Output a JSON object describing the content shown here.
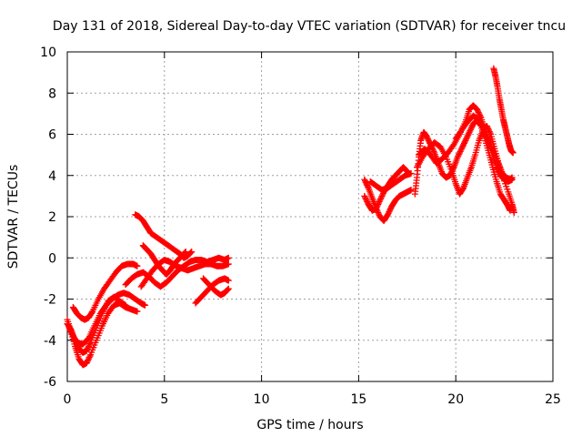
{
  "chart_data": {
    "type": "scatter",
    "title": "Day 131 of 2018, Sidereal Day-to-day VTEC variation (SDTVAR) for receiver tncu",
    "xlabel": "GPS time / hours",
    "ylabel": "SDTVAR / TECUs",
    "xlim": [
      0,
      25
    ],
    "ylim": [
      -6,
      10
    ],
    "xticks": [
      0,
      5,
      10,
      15,
      20,
      25
    ],
    "yticks": [
      -6,
      -4,
      -2,
      0,
      2,
      4,
      6,
      8,
      10
    ],
    "xtick_labels": [
      "0",
      "5",
      "10",
      "15",
      "20",
      "25"
    ],
    "ytick_labels": [
      "-6",
      "-4",
      "-2",
      "0",
      "2",
      "4",
      "6",
      "8",
      "10"
    ],
    "grid": true,
    "marker": "+",
    "color": "#ff0000",
    "series": [
      {
        "name": "track-1",
        "points": [
          [
            0.0,
            -3.0
          ],
          [
            0.2,
            -3.6
          ],
          [
            0.4,
            -4.3
          ],
          [
            0.6,
            -4.9
          ],
          [
            0.8,
            -5.2
          ],
          [
            1.0,
            -5.1
          ],
          [
            1.2,
            -4.7
          ],
          [
            1.5,
            -4.0
          ],
          [
            1.8,
            -3.3
          ],
          [
            2.1,
            -2.7
          ],
          [
            2.4,
            -2.3
          ],
          [
            2.7,
            -2.2
          ],
          [
            3.0,
            -2.4
          ],
          [
            3.3,
            -2.5
          ],
          [
            3.6,
            -2.6
          ]
        ]
      },
      {
        "name": "track-2",
        "points": [
          [
            0.0,
            -3.2
          ],
          [
            0.2,
            -3.5
          ],
          [
            0.4,
            -4.0
          ],
          [
            0.6,
            -4.4
          ],
          [
            0.8,
            -4.6
          ],
          [
            1.0,
            -4.5
          ],
          [
            1.2,
            -4.1
          ],
          [
            1.5,
            -3.4
          ],
          [
            1.8,
            -2.7
          ],
          [
            2.1,
            -2.1
          ],
          [
            2.4,
            -1.9
          ],
          [
            2.7,
            -2.1
          ],
          [
            3.0,
            -2.3
          ]
        ]
      },
      {
        "name": "track-3",
        "points": [
          [
            0.3,
            -2.4
          ],
          [
            0.5,
            -2.7
          ],
          [
            0.7,
            -2.9
          ],
          [
            0.9,
            -3.0
          ],
          [
            1.1,
            -2.9
          ],
          [
            1.3,
            -2.6
          ],
          [
            1.6,
            -2.0
          ],
          [
            1.9,
            -1.5
          ],
          [
            2.2,
            -1.1
          ],
          [
            2.5,
            -0.7
          ],
          [
            2.8,
            -0.4
          ],
          [
            3.1,
            -0.3
          ],
          [
            3.4,
            -0.3
          ],
          [
            3.6,
            -0.4
          ]
        ]
      },
      {
        "name": "track-4",
        "points": [
          [
            0.1,
            -3.4
          ],
          [
            0.3,
            -3.8
          ],
          [
            0.5,
            -4.1
          ],
          [
            0.8,
            -4.2
          ],
          [
            1.1,
            -3.9
          ],
          [
            1.4,
            -3.3
          ],
          [
            1.7,
            -2.7
          ],
          [
            2.0,
            -2.3
          ],
          [
            2.3,
            -2.0
          ],
          [
            2.6,
            -1.8
          ],
          [
            2.9,
            -1.7
          ],
          [
            3.2,
            -1.8
          ],
          [
            3.5,
            -2.0
          ],
          [
            3.8,
            -2.2
          ],
          [
            4.0,
            -2.3
          ]
        ]
      },
      {
        "name": "track-5",
        "points": [
          [
            3.5,
            2.1
          ],
          [
            3.7,
            2.0
          ],
          [
            3.9,
            1.8
          ],
          [
            4.1,
            1.5
          ],
          [
            4.3,
            1.2
          ],
          [
            4.6,
            1.0
          ],
          [
            4.9,
            0.8
          ],
          [
            5.2,
            0.6
          ],
          [
            5.5,
            0.4
          ],
          [
            5.8,
            0.2
          ],
          [
            6.0,
            0.0
          ],
          [
            6.2,
            0.1
          ],
          [
            6.4,
            0.3
          ]
        ]
      },
      {
        "name": "track-6",
        "points": [
          [
            3.8,
            -1.4
          ],
          [
            4.1,
            -1.0
          ],
          [
            4.4,
            -0.6
          ],
          [
            4.7,
            -0.3
          ],
          [
            5.0,
            -0.1
          ],
          [
            5.3,
            -0.2
          ],
          [
            5.6,
            -0.4
          ],
          [
            5.9,
            -0.5
          ],
          [
            6.2,
            -0.6
          ],
          [
            6.5,
            -0.5
          ],
          [
            6.8,
            -0.4
          ],
          [
            7.1,
            -0.3
          ],
          [
            7.4,
            -0.3
          ],
          [
            7.7,
            -0.4
          ],
          [
            8.0,
            -0.4
          ],
          [
            8.3,
            -0.3
          ]
        ]
      },
      {
        "name": "track-7",
        "points": [
          [
            3.9,
            0.6
          ],
          [
            4.1,
            0.4
          ],
          [
            4.3,
            0.2
          ],
          [
            4.5,
            -0.1
          ],
          [
            4.7,
            -0.4
          ],
          [
            4.9,
            -0.6
          ],
          [
            5.1,
            -0.8
          ],
          [
            5.3,
            -0.6
          ],
          [
            5.5,
            -0.3
          ],
          [
            5.7,
            -0.1
          ],
          [
            5.9,
            0.1
          ],
          [
            6.1,
            0.3
          ]
        ]
      },
      {
        "name": "track-8",
        "points": [
          [
            3.0,
            -1.3
          ],
          [
            3.3,
            -1.0
          ],
          [
            3.6,
            -0.8
          ],
          [
            3.9,
            -0.7
          ],
          [
            4.2,
            -0.9
          ],
          [
            4.5,
            -1.2
          ],
          [
            4.8,
            -1.4
          ],
          [
            5.1,
            -1.2
          ],
          [
            5.4,
            -0.9
          ],
          [
            5.7,
            -0.6
          ],
          [
            6.0,
            -0.4
          ],
          [
            6.3,
            -0.2
          ],
          [
            6.6,
            -0.1
          ],
          [
            6.9,
            -0.1
          ],
          [
            7.2,
            -0.2
          ],
          [
            7.5,
            -0.1
          ],
          [
            7.8,
            0.0
          ],
          [
            8.1,
            -0.1
          ],
          [
            8.3,
            0.0
          ]
        ]
      },
      {
        "name": "track-9",
        "points": [
          [
            6.6,
            -2.2
          ],
          [
            6.9,
            -1.9
          ],
          [
            7.2,
            -1.6
          ],
          [
            7.5,
            -1.3
          ],
          [
            7.8,
            -1.1
          ],
          [
            8.1,
            -1.0
          ],
          [
            8.3,
            -1.1
          ]
        ]
      },
      {
        "name": "track-10",
        "points": [
          [
            7.0,
            -1.0
          ],
          [
            7.3,
            -1.3
          ],
          [
            7.6,
            -1.6
          ],
          [
            7.9,
            -1.8
          ],
          [
            8.1,
            -1.7
          ],
          [
            8.3,
            -1.5
          ]
        ]
      },
      {
        "name": "track-11",
        "points": [
          [
            15.3,
            3.8
          ],
          [
            15.5,
            3.4
          ],
          [
            15.7,
            2.9
          ],
          [
            15.9,
            2.4
          ],
          [
            16.1,
            2.0
          ],
          [
            16.3,
            1.8
          ],
          [
            16.5,
            2.1
          ],
          [
            16.7,
            2.5
          ],
          [
            16.9,
            2.8
          ],
          [
            17.1,
            3.0
          ],
          [
            17.3,
            3.1
          ],
          [
            17.5,
            3.2
          ],
          [
            17.7,
            3.3
          ]
        ]
      },
      {
        "name": "track-12",
        "points": [
          [
            15.3,
            3.0
          ],
          [
            15.5,
            2.6
          ],
          [
            15.7,
            2.3
          ],
          [
            15.9,
            2.4
          ],
          [
            16.1,
            2.8
          ],
          [
            16.3,
            3.2
          ],
          [
            16.5,
            3.5
          ],
          [
            16.7,
            3.8
          ],
          [
            16.9,
            4.0
          ],
          [
            17.1,
            4.2
          ],
          [
            17.3,
            4.4
          ],
          [
            17.5,
            4.2
          ]
        ]
      },
      {
        "name": "track-13",
        "points": [
          [
            15.6,
            3.7
          ],
          [
            15.9,
            3.5
          ],
          [
            16.2,
            3.3
          ],
          [
            16.5,
            3.4
          ],
          [
            16.8,
            3.6
          ],
          [
            17.1,
            3.8
          ],
          [
            17.4,
            4.0
          ],
          [
            17.7,
            4.1
          ]
        ]
      },
      {
        "name": "track-14",
        "points": [
          [
            17.9,
            3.1
          ],
          [
            18.0,
            3.9
          ],
          [
            18.1,
            4.9
          ],
          [
            18.2,
            5.7
          ],
          [
            18.35,
            6.1
          ],
          [
            18.5,
            5.9
          ],
          [
            18.7,
            5.5
          ],
          [
            18.9,
            5.1
          ],
          [
            19.1,
            4.6
          ],
          [
            19.3,
            4.1
          ],
          [
            19.5,
            3.9
          ],
          [
            19.7,
            4.0
          ],
          [
            19.9,
            4.4
          ],
          [
            20.1,
            4.9
          ],
          [
            20.3,
            5.3
          ],
          [
            20.5,
            5.7
          ],
          [
            20.7,
            6.1
          ],
          [
            20.9,
            6.5
          ],
          [
            21.1,
            6.7
          ],
          [
            21.3,
            6.4
          ],
          [
            21.5,
            5.8
          ],
          [
            21.7,
            5.1
          ],
          [
            21.9,
            4.4
          ],
          [
            22.1,
            3.7
          ],
          [
            22.3,
            3.1
          ],
          [
            22.5,
            2.8
          ],
          [
            22.7,
            2.5
          ],
          [
            22.8,
            2.3
          ]
        ]
      },
      {
        "name": "track-15",
        "points": [
          [
            18.0,
            4.4
          ],
          [
            18.3,
            4.9
          ],
          [
            18.6,
            5.3
          ],
          [
            18.9,
            5.6
          ],
          [
            19.2,
            5.4
          ],
          [
            19.5,
            4.9
          ],
          [
            19.8,
            4.2
          ],
          [
            20.0,
            3.6
          ],
          [
            20.2,
            3.1
          ],
          [
            20.4,
            3.4
          ],
          [
            20.6,
            3.9
          ],
          [
            20.8,
            4.4
          ],
          [
            21.0,
            5.0
          ],
          [
            21.2,
            5.7
          ],
          [
            21.4,
            6.2
          ],
          [
            21.6,
            6.4
          ],
          [
            21.8,
            6.0
          ],
          [
            22.0,
            5.3
          ],
          [
            22.2,
            4.6
          ],
          [
            22.4,
            4.1
          ],
          [
            22.6,
            3.9
          ],
          [
            22.8,
            3.8
          ],
          [
            22.9,
            3.9
          ]
        ]
      },
      {
        "name": "track-16",
        "points": [
          [
            18.1,
            5.0
          ],
          [
            18.4,
            5.3
          ],
          [
            18.7,
            5.0
          ],
          [
            19.0,
            4.6
          ],
          [
            19.3,
            4.8
          ],
          [
            19.6,
            5.1
          ],
          [
            19.9,
            5.5
          ],
          [
            20.2,
            6.0
          ],
          [
            20.5,
            6.6
          ],
          [
            20.7,
            7.2
          ],
          [
            20.9,
            7.4
          ],
          [
            21.1,
            7.2
          ],
          [
            21.3,
            6.8
          ],
          [
            21.5,
            6.2
          ],
          [
            21.7,
            5.6
          ],
          [
            21.9,
            5.0
          ],
          [
            22.1,
            4.4
          ],
          [
            22.3,
            4.0
          ],
          [
            22.5,
            3.8
          ],
          [
            22.7,
            3.7
          ],
          [
            22.9,
            3.8
          ]
        ]
      },
      {
        "name": "track-17",
        "points": [
          [
            21.95,
            9.2
          ],
          [
            22.05,
            8.8
          ],
          [
            22.15,
            8.3
          ],
          [
            22.25,
            7.7
          ],
          [
            22.35,
            7.2
          ],
          [
            22.45,
            6.7
          ],
          [
            22.55,
            6.3
          ],
          [
            22.65,
            5.9
          ],
          [
            22.75,
            5.5
          ],
          [
            22.85,
            5.2
          ],
          [
            22.95,
            5.1
          ]
        ]
      },
      {
        "name": "track-18",
        "points": [
          [
            20.0,
            5.8
          ],
          [
            20.3,
            6.2
          ],
          [
            20.6,
            6.6
          ],
          [
            20.9,
            6.9
          ],
          [
            21.2,
            6.7
          ],
          [
            21.5,
            6.2
          ],
          [
            21.8,
            5.5
          ],
          [
            22.1,
            4.8
          ],
          [
            22.4,
            4.0
          ],
          [
            22.7,
            3.2
          ],
          [
            22.9,
            2.6
          ],
          [
            23.0,
            2.2
          ]
        ]
      }
    ]
  }
}
